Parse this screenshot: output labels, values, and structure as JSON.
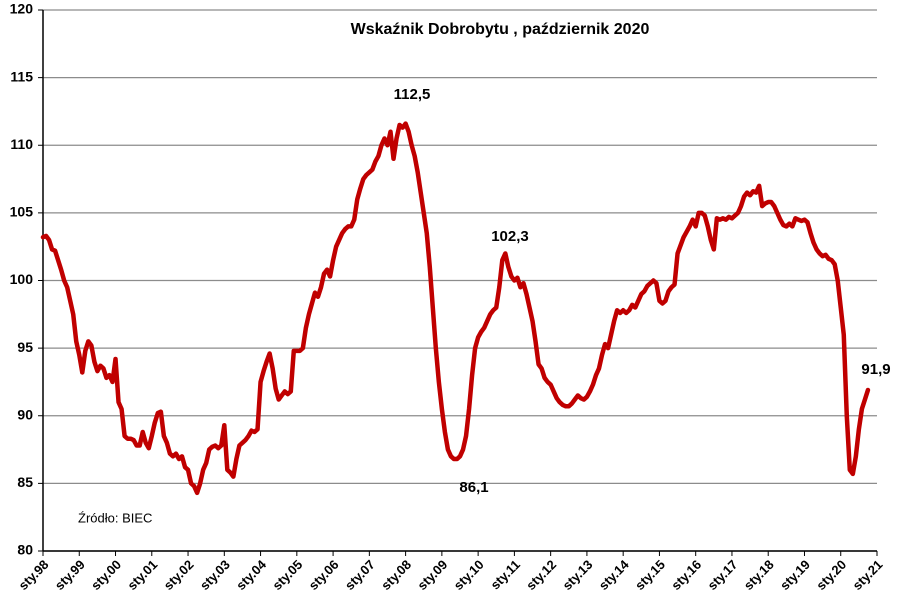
{
  "chart_data": {
    "type": "line",
    "title": "Wskaźnik Dobrobytu , październik 2020",
    "categories": [
      "sty.98",
      null,
      null,
      null,
      null,
      null,
      null,
      null,
      null,
      null,
      null,
      null,
      "sty.99",
      null,
      null,
      null,
      null,
      null,
      null,
      null,
      null,
      null,
      null,
      null,
      "sty.00",
      null,
      null,
      null,
      null,
      null,
      null,
      null,
      null,
      null,
      null,
      null,
      "sty.01",
      null,
      null,
      null,
      null,
      null,
      null,
      null,
      null,
      null,
      null,
      null,
      "sty.02",
      null,
      null,
      null,
      null,
      null,
      null,
      null,
      null,
      null,
      null,
      null,
      "sty.03",
      null,
      null,
      null,
      null,
      null,
      null,
      null,
      null,
      null,
      null,
      null,
      "sty.04",
      null,
      null,
      null,
      null,
      null,
      null,
      null,
      null,
      null,
      null,
      null,
      "sty.05",
      null,
      null,
      null,
      null,
      null,
      null,
      null,
      null,
      null,
      null,
      null,
      "sty.06",
      null,
      null,
      null,
      null,
      null,
      null,
      null,
      null,
      null,
      null,
      null,
      "sty.07",
      null,
      null,
      null,
      null,
      null,
      null,
      null,
      null,
      null,
      null,
      null,
      "sty.08",
      null,
      null,
      null,
      null,
      null,
      null,
      null,
      null,
      null,
      null,
      null,
      "sty.09",
      null,
      null,
      null,
      null,
      null,
      null,
      null,
      null,
      null,
      null,
      null,
      "sty.10",
      null,
      null,
      null,
      null,
      null,
      null,
      null,
      null,
      null,
      null,
      null,
      "sty.11",
      null,
      null,
      null,
      null,
      null,
      null,
      null,
      null,
      null,
      null,
      null,
      "sty.12",
      null,
      null,
      null,
      null,
      null,
      null,
      null,
      null,
      null,
      null,
      null,
      "sty.13",
      null,
      null,
      null,
      null,
      null,
      null,
      null,
      null,
      null,
      null,
      null,
      "sty.14",
      null,
      null,
      null,
      null,
      null,
      null,
      null,
      null,
      null,
      null,
      null,
      "sty.15",
      null,
      null,
      null,
      null,
      null,
      null,
      null,
      null,
      null,
      null,
      null,
      "sty.16",
      null,
      null,
      null,
      null,
      null,
      null,
      null,
      null,
      null,
      null,
      null,
      "sty.17",
      null,
      null,
      null,
      null,
      null,
      null,
      null,
      null,
      null,
      null,
      null,
      "sty.18",
      null,
      null,
      null,
      null,
      null,
      null,
      null,
      null,
      null,
      null,
      null,
      "sty.19",
      null,
      null,
      null,
      null,
      null,
      null,
      null,
      null,
      null,
      null,
      null,
      "sty.20",
      null,
      null,
      null,
      null,
      null,
      null,
      null,
      null,
      null,
      null,
      null,
      "sty.21"
    ],
    "values": [
      103.2,
      103.3,
      103.0,
      102.3,
      102.2,
      101.5,
      100.8,
      100.0,
      99.5,
      98.5,
      97.5,
      95.5,
      94.5,
      93.2,
      94.8,
      95.5,
      95.2,
      94.0,
      93.3,
      93.7,
      93.5,
      92.8,
      93.0,
      92.5,
      94.2,
      91.0,
      90.5,
      88.5,
      88.3,
      88.3,
      88.2,
      87.8,
      87.8,
      88.8,
      88.0,
      87.6,
      88.5,
      89.5,
      90.2,
      90.3,
      88.5,
      88.0,
      87.2,
      87.0,
      87.2,
      86.8,
      87.0,
      86.2,
      86.0,
      85.0,
      84.8,
      84.3,
      85.0,
      86.0,
      86.5,
      87.5,
      87.7,
      87.8,
      87.6,
      87.8,
      89.3,
      86.0,
      85.8,
      85.5,
      86.8,
      87.8,
      88.0,
      88.2,
      88.5,
      88.9,
      88.8,
      89.0,
      92.5,
      93.3,
      94.0,
      94.6,
      93.5,
      92.0,
      91.2,
      91.5,
      91.8,
      91.6,
      91.8,
      94.8,
      94.8,
      94.8,
      95.0,
      96.5,
      97.5,
      98.3,
      99.1,
      98.8,
      99.5,
      100.5,
      100.8,
      100.3,
      101.5,
      102.5,
      103.0,
      103.5,
      103.8,
      104.0,
      104.0,
      104.5,
      106.0,
      106.8,
      107.5,
      107.8,
      108.0,
      108.2,
      108.8,
      109.2,
      110.0,
      110.5,
      110.0,
      111.0,
      109.0,
      110.5,
      111.5,
      111.3,
      111.6,
      111.0,
      110.0,
      109.2,
      108.0,
      106.5,
      105.0,
      103.5,
      101.0,
      98.0,
      95.0,
      92.5,
      90.5,
      88.8,
      87.5,
      87.0,
      86.8,
      86.8,
      87.0,
      87.5,
      88.5,
      90.5,
      93.0,
      95.0,
      95.8,
      96.2,
      96.5,
      97.0,
      97.5,
      97.8,
      98.0,
      99.5,
      101.5,
      102.0,
      101.0,
      100.3,
      100.0,
      100.2,
      99.5,
      99.8,
      99.0,
      98.0,
      97.0,
      95.5,
      93.8,
      93.5,
      92.8,
      92.5,
      92.3,
      91.8,
      91.3,
      91.0,
      90.8,
      90.7,
      90.7,
      90.9,
      91.2,
      91.5,
      91.3,
      91.2,
      91.4,
      91.8,
      92.3,
      93.0,
      93.5,
      94.5,
      95.3,
      95.0,
      96.0,
      97.0,
      97.8,
      97.6,
      97.8,
      97.6,
      97.8,
      98.2,
      98.0,
      98.5,
      99.0,
      99.2,
      99.6,
      99.8,
      100.0,
      99.8,
      98.5,
      98.3,
      98.5,
      99.2,
      99.5,
      99.7,
      102.0,
      102.6,
      103.2,
      103.6,
      104.0,
      104.5,
      104.0,
      105.0,
      105.0,
      104.8,
      104.0,
      103.0,
      102.3,
      104.6,
      104.5,
      104.6,
      104.5,
      104.7,
      104.6,
      104.8,
      105.0,
      105.5,
      106.2,
      106.5,
      106.3,
      106.6,
      106.5,
      107.0,
      105.5,
      105.7,
      105.8,
      105.8,
      105.5,
      105.0,
      104.5,
      104.1,
      104.0,
      104.2,
      104.0,
      104.6,
      104.5,
      104.4,
      104.5,
      104.3,
      103.5,
      102.8,
      102.3,
      102.0,
      101.8,
      101.9,
      101.6,
      101.5,
      101.2,
      100.0,
      98.0,
      96.0,
      90.0,
      86.0,
      85.7,
      87.0,
      89.0,
      90.5,
      91.2,
      91.9,
      null,
      null,
      null
    ],
    "color": "#c00000",
    "ylim": [
      80,
      120
    ],
    "yticks": [
      80,
      85,
      90,
      95,
      100,
      105,
      110,
      115,
      120
    ],
    "grid": true,
    "annotations": [
      "112,5",
      "102,3",
      "86,1",
      "91,9",
      "Źródło: BIEC"
    ]
  }
}
